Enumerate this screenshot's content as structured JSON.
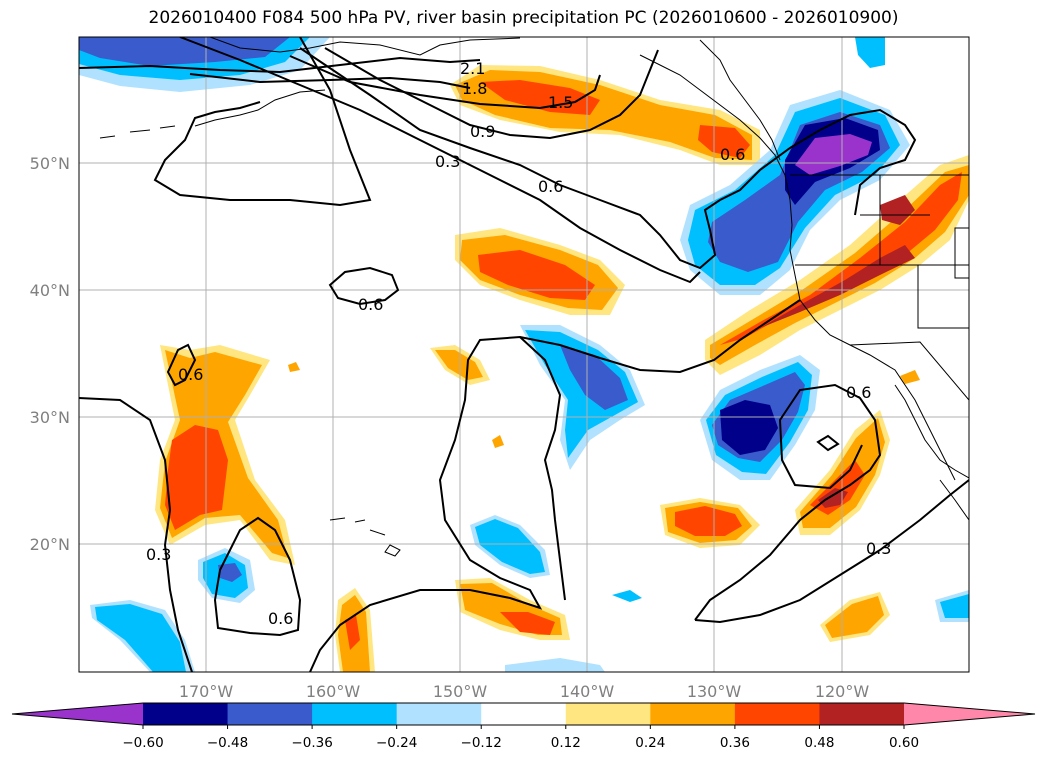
{
  "title": "2026010400 F084 500 hPa PV, river basin precipitation PC (2026010600 - 2026010900)",
  "map": {
    "projection": "plate-carree",
    "lon_range": [
      180,
      -110
    ],
    "lat_range": [
      10,
      60
    ],
    "lat_ticks": [
      {
        "value": 50,
        "label": "50°N"
      },
      {
        "value": 40,
        "label": "40°N"
      },
      {
        "value": 30,
        "label": "30°N"
      },
      {
        "value": 20,
        "label": "20°N"
      }
    ],
    "lon_ticks": [
      {
        "value": -170,
        "label": "170°W"
      },
      {
        "value": -160,
        "label": "160°W"
      },
      {
        "value": -150,
        "label": "150°W"
      },
      {
        "value": -140,
        "label": "140°W"
      },
      {
        "value": -130,
        "label": "130°W"
      },
      {
        "value": -120,
        "label": "120°W"
      }
    ],
    "pv_contour_labels": [
      "2.1",
      "1.8",
      "1.5",
      "0.9",
      "0.6",
      "0.3",
      "0.6",
      "0.6",
      "0.6",
      "0.3",
      "0.6",
      "0.6",
      "0.3"
    ]
  },
  "colorbar": {
    "levels": [
      "−0.60",
      "−0.48",
      "−0.36",
      "−0.24",
      "−0.12",
      "0.12",
      "0.24",
      "0.36",
      "0.48",
      "0.60"
    ],
    "colors": [
      "#9933cc",
      "#00008b",
      "#3a5bcc",
      "#00bfff",
      "#b0e2ff",
      "#ffffff",
      "#ffe680",
      "#ffa500",
      "#ff4500",
      "#b22222",
      "#ff88aa"
    ]
  },
  "colors": {
    "neg_060": "#9933cc",
    "neg_048": "#00008b",
    "neg_036": "#3a5bcc",
    "neg_024": "#00bfff",
    "neg_012": "#b0e2ff",
    "pos_012": "#ffe680",
    "pos_024": "#ffa500",
    "pos_036": "#ff4500",
    "pos_048": "#b22222",
    "pos_060": "#ff88aa"
  }
}
